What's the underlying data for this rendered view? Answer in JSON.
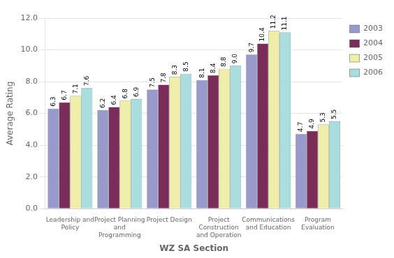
{
  "chart_data": {
    "type": "bar",
    "xlabel": "WZ SA Section",
    "ylabel": "Average Rating",
    "categories": [
      "Leadership and\nPolicy",
      "Project Planning\nand\nProgramming",
      "Project Design",
      "Project\nConstruction\nand Operation",
      "Communications\nand Education",
      "Program\nEvaluation"
    ],
    "series": [
      {
        "name": "2003",
        "color": "#9999CC",
        "values": [
          6.3,
          6.2,
          7.5,
          8.1,
          9.7,
          4.7
        ]
      },
      {
        "name": "2004",
        "color": "#7B2D5A",
        "values": [
          6.7,
          6.4,
          7.8,
          8.4,
          10.4,
          4.9
        ]
      },
      {
        "name": "2005",
        "color": "#EEEEAA",
        "values": [
          7.1,
          6.8,
          8.3,
          8.8,
          11.2,
          5.3
        ]
      },
      {
        "name": "2006",
        "color": "#AADDDD",
        "values": [
          7.6,
          6.9,
          8.5,
          9.0,
          11.1,
          5.5
        ],
        "value_labels": [
          "7.6",
          "6.9",
          "8.5",
          "9.0",
          "11.1",
          "5.5"
        ]
      }
    ],
    "ylim": [
      0.0,
      12.0
    ],
    "yticks": [
      {
        "value": 0,
        "label": "0.0"
      },
      {
        "value": 2,
        "label": "2.0"
      },
      {
        "value": 4,
        "label": "4.0"
      },
      {
        "value": 6,
        "label": "6.0"
      },
      {
        "value": 8,
        "label": "8.0"
      },
      {
        "value": 10,
        "label": "10.0"
      },
      {
        "value": 12,
        "label": "12.0"
      }
    ],
    "grid": true,
    "legend": "right",
    "data_labels": true
  }
}
